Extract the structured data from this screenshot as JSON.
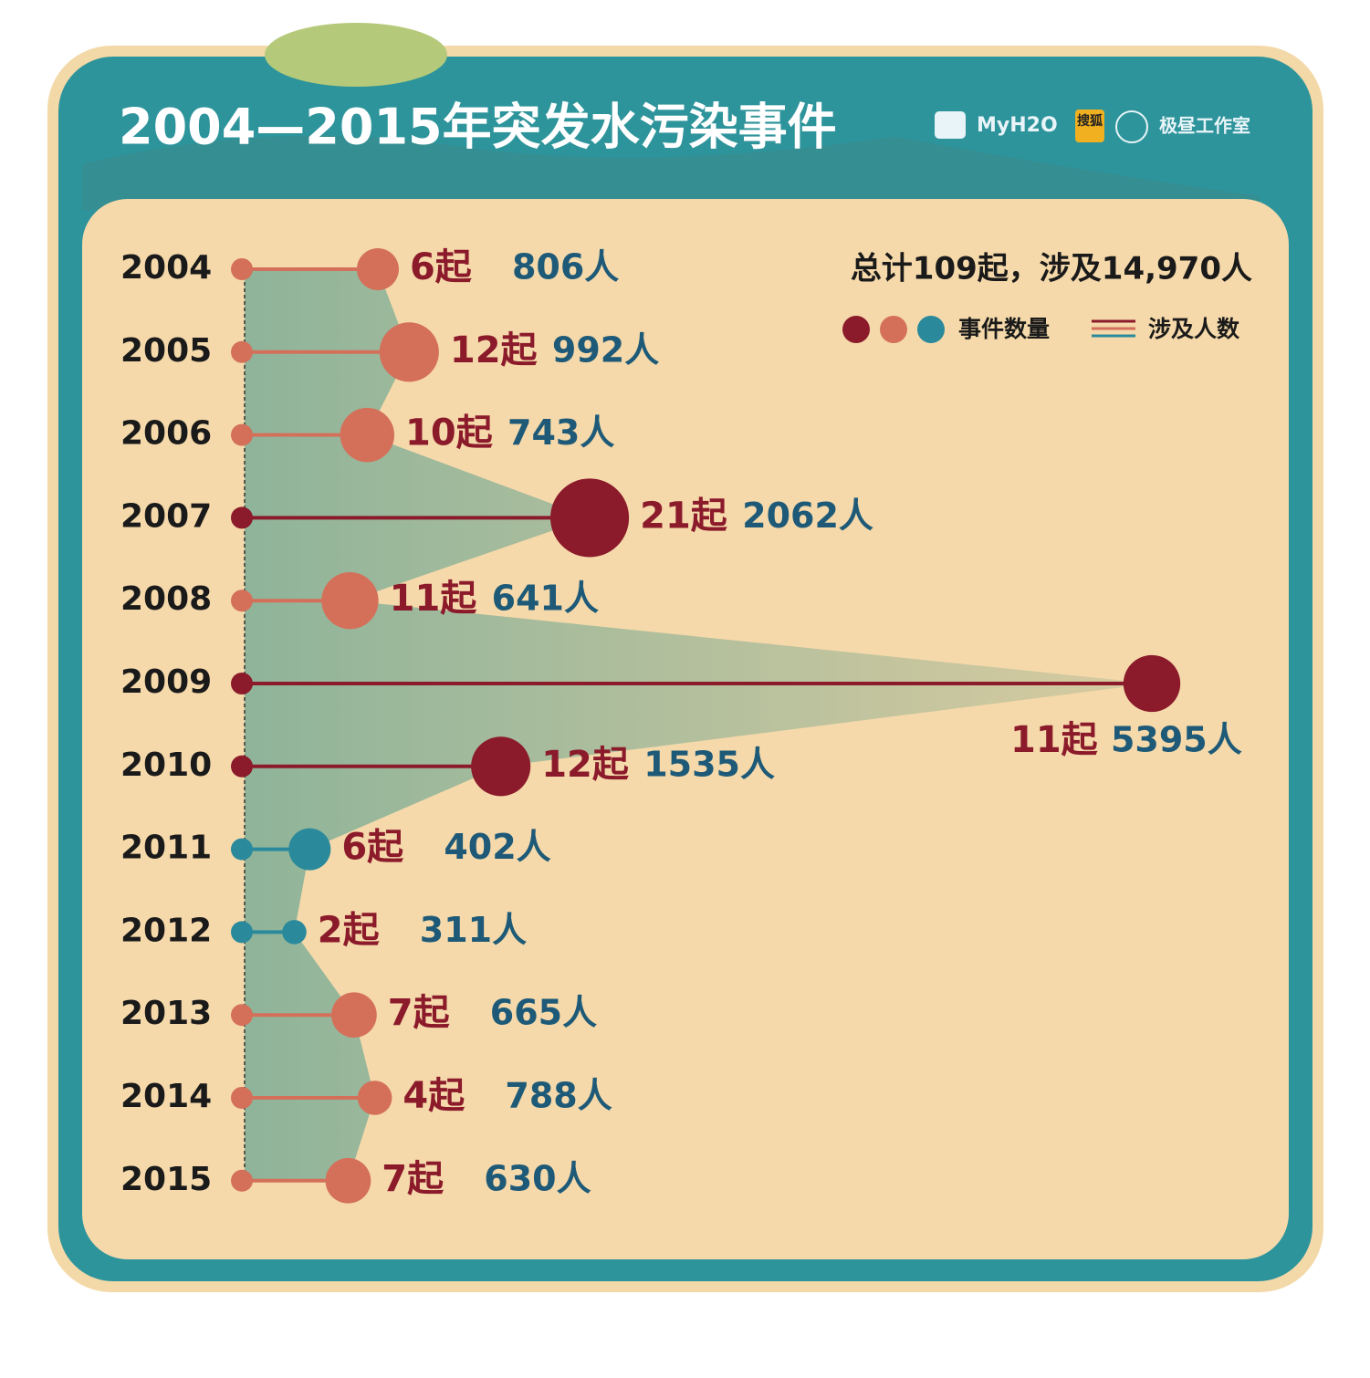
{
  "chart_data": {
    "type": "lollipop",
    "title": "2004—2015年突发水污染事件",
    "total_note": "总计109起，涉及14,970人",
    "categories": [
      "2004",
      "2005",
      "2006",
      "2007",
      "2008",
      "2009",
      "2010",
      "2011",
      "2012",
      "2013",
      "2014",
      "2015"
    ],
    "series": [
      {
        "name": "事件数量",
        "values": [
          6,
          12,
          10,
          21,
          11,
          11,
          12,
          6,
          2,
          7,
          4,
          7
        ],
        "value_labels": [
          "6起",
          "12起",
          "10起",
          "21起",
          "11起",
          "11起",
          "12起",
          "6起",
          "2起",
          "7起",
          "4起",
          "7起"
        ]
      },
      {
        "name": "涉及人数",
        "values": [
          806,
          992,
          743,
          2062,
          641,
          5395,
          1535,
          402,
          311,
          665,
          788,
          630
        ],
        "value_labels": [
          "806人",
          "992人",
          "743人",
          "2062人",
          "641人",
          "5395人",
          "1535人",
          "402人",
          "311人",
          "665人",
          "788人",
          "630人"
        ]
      }
    ],
    "point_colors": [
      "#d4705a",
      "#d4705a",
      "#d4705a",
      "#8b1a2b",
      "#d4705a",
      "#8b1a2b",
      "#8b1a2b",
      "#2a8a9c",
      "#2a8a9c",
      "#d4705a",
      "#d4705a",
      "#d4705a"
    ],
    "palette": [
      "#8b1a2b",
      "#d4705a",
      "#2a8a9c"
    ]
  },
  "brands": [
    "MyH2O",
    "搜狐",
    "极昼工作室"
  ]
}
